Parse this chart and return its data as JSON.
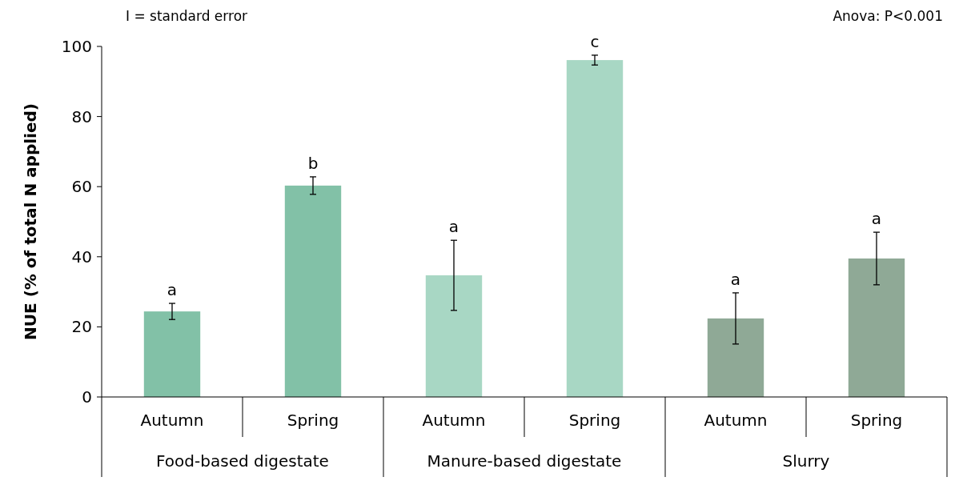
{
  "chart_data": {
    "type": "bar",
    "ylabel": "NUE (% of total N applied)",
    "categories": [
      "Autumn",
      "Spring",
      "Autumn",
      "Spring",
      "Autumn",
      "Spring"
    ],
    "values": [
      24.4,
      60.3,
      34.7,
      96.1,
      22.4,
      39.5
    ],
    "errors": [
      2.3,
      2.5,
      10,
      1.4,
      7.3,
      7.5
    ],
    "colors": [
      "#82c1a7",
      "#82c1a7",
      "#a8d7c4",
      "#a8d7c4",
      "#8fa996",
      "#8fa996"
    ],
    "value_labels": [
      "a",
      "b",
      "a",
      "c",
      "a",
      "a"
    ],
    "ylim": [
      0,
      100
    ],
    "yticks": [
      0,
      20,
      40,
      60,
      80,
      100
    ],
    "grid": false,
    "annotations": [
      "I = standard error",
      "Anova: P<0.001",
      "Food-based digestate",
      "Manure-based digestate",
      "Slurry"
    ]
  }
}
